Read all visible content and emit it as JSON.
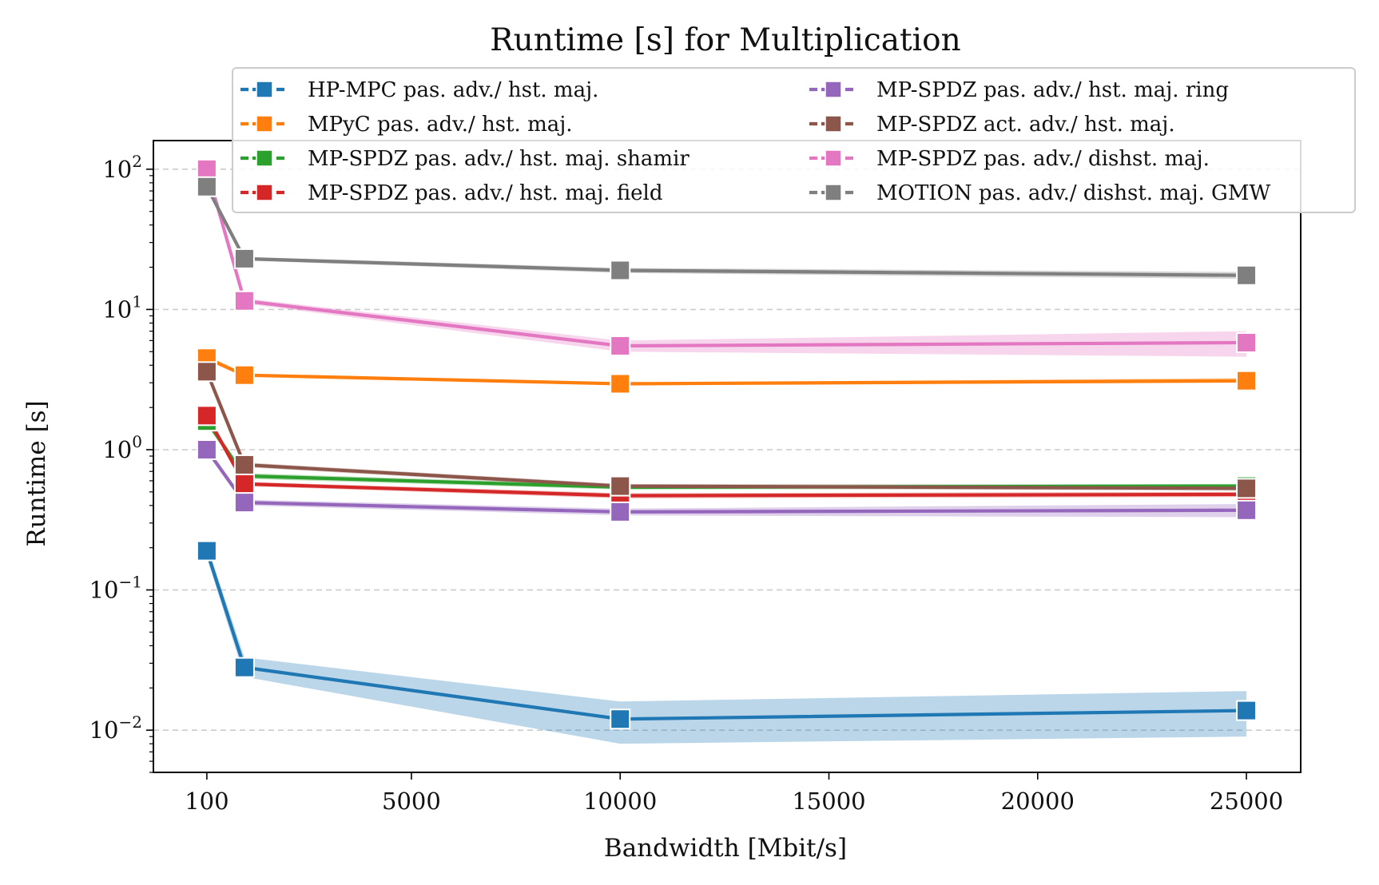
{
  "chart_data": {
    "type": "line",
    "title": "Runtime [s] for Multiplication",
    "xlabel": "Bandwidth [Mbit/s]",
    "ylabel": "Runtime [s]",
    "xlim": [
      -1180,
      26300
    ],
    "ylim": [
      0.005,
      160
    ],
    "yscale": "log",
    "grid": "horizontal dashed",
    "legend_position": "top",
    "x_ticks": [
      100,
      5000,
      10000,
      15000,
      20000,
      25000
    ],
    "x_tick_labels": [
      "100",
      "5000",
      "10000",
      "15000",
      "20000",
      "25000"
    ],
    "y_ticks": [
      {
        "value": 100,
        "base": "10",
        "exp": "2"
      },
      {
        "value": 10,
        "base": "10",
        "exp": "1"
      },
      {
        "value": 1,
        "base": "10",
        "exp": "0"
      },
      {
        "value": 0.1,
        "base": "10",
        "exp": "−1"
      },
      {
        "value": 0.01,
        "base": "10",
        "exp": "−2"
      }
    ],
    "x": [
      100,
      1000,
      10000,
      25000
    ],
    "series": [
      {
        "name": "HP-MPC pas. adv./ hst. maj.",
        "color": "#1f77b4",
        "values": [
          0.19,
          0.028,
          0.012,
          0.0138
        ],
        "band_low": [
          0.17,
          0.024,
          0.008,
          0.009
        ],
        "band_high": [
          0.21,
          0.033,
          0.016,
          0.019
        ]
      },
      {
        "name": "MPyC pas. adv./ hst. maj.",
        "color": "#ff7f0e",
        "values": [
          4.5,
          3.4,
          2.95,
          3.1
        ],
        "band_low": [
          4.3,
          3.3,
          2.9,
          3.0
        ],
        "band_high": [
          4.7,
          3.5,
          3.0,
          3.25
        ]
      },
      {
        "name": "MP-SPDZ pas. adv./ hst. maj. shamir",
        "color": "#2ca02c",
        "values": [
          1.6,
          0.65,
          0.54,
          0.55
        ],
        "band_low": [
          1.5,
          0.62,
          0.52,
          0.53
        ],
        "band_high": [
          1.7,
          0.68,
          0.56,
          0.57
        ]
      },
      {
        "name": "MP-SPDZ pas. adv./ hst. maj. field",
        "color": "#d62728",
        "values": [
          1.75,
          0.57,
          0.47,
          0.48
        ],
        "band_low": [
          1.65,
          0.55,
          0.45,
          0.46
        ],
        "band_high": [
          1.85,
          0.59,
          0.49,
          0.5
        ]
      },
      {
        "name": "MP-SPDZ pas. adv./ hst. maj. ring",
        "color": "#9467bd",
        "values": [
          1.0,
          0.42,
          0.36,
          0.37
        ],
        "band_low": [
          0.95,
          0.4,
          0.34,
          0.33
        ],
        "band_high": [
          1.05,
          0.44,
          0.38,
          0.41
        ]
      },
      {
        "name": "MP-SPDZ act. adv./ hst. maj.",
        "color": "#8c564b",
        "values": [
          3.6,
          0.78,
          0.55,
          0.53
        ],
        "band_low": [
          3.4,
          0.75,
          0.53,
          0.51
        ],
        "band_high": [
          3.8,
          0.81,
          0.57,
          0.56
        ]
      },
      {
        "name": "MP-SPDZ pas. adv./ dishst. maj.",
        "color": "#e377c2",
        "values": [
          100,
          11.5,
          5.5,
          5.8
        ],
        "band_low": [
          96,
          11.0,
          5.0,
          4.6
        ],
        "band_high": [
          104,
          12.0,
          6.0,
          7.0
        ]
      },
      {
        "name": "MOTION pas. adv./ dishst. maj. GMW",
        "color": "#7f7f7f",
        "values": [
          75,
          23,
          19,
          17.5
        ],
        "band_low": [
          72,
          22.3,
          18.2,
          16.5
        ],
        "band_high": [
          78,
          23.7,
          19.8,
          18.5
        ]
      }
    ]
  }
}
